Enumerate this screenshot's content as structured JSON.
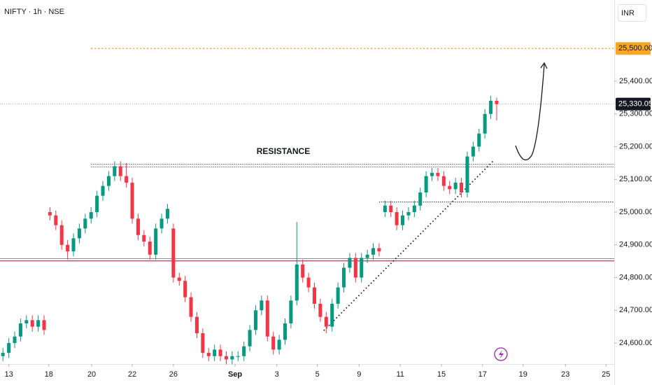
{
  "chart_data": {
    "type": "candlestick",
    "title": "NIFTY · 1h · NSE",
    "currency": "INR",
    "annotation": "RESISTANCE",
    "up_color": "#089981",
    "down_color": "#f23645",
    "open": [
      24560,
      24570,
      24600,
      24620,
      24660,
      24670,
      24650,
      24670,
      25000,
      24990,
      24960,
      24900,
      24880,
      24920,
      24950,
      24980,
      25000,
      25050,
      25080,
      25110,
      25140,
      25110,
      25090,
      24980,
      24930,
      24910,
      24870,
      24950,
      24980,
      24950,
      24800,
      24790,
      24740,
      24680,
      24630,
      24570,
      24560,
      24580,
      24560,
      24550,
      24560,
      24560,
      24590,
      24640,
      24700,
      24730,
      24620,
      24580,
      24610,
      24660,
      24730,
      24840,
      24800,
      24770,
      24720,
      24680,
      24650,
      24720,
      24770,
      24830,
      24860,
      24800,
      24860,
      24870,
      24890,
      25000,
      25020,
      25000,
      24960,
      24990,
      25000,
      25020,
      25060,
      25110,
      25120,
      25110,
      25080,
      25070,
      25090,
      25060,
      25170,
      25200,
      25240,
      25300,
      25340
    ],
    "high": [
      24585,
      24615,
      24635,
      24675,
      24685,
      24685,
      24685,
      24685,
      25015,
      25005,
      24975,
      24915,
      24935,
      24965,
      24995,
      25015,
      25065,
      25095,
      25125,
      25155,
      25155,
      25150,
      25105,
      24995,
      24945,
      24925,
      24965,
      24995,
      25025,
      24965,
      24815,
      24805,
      24755,
      24695,
      24645,
      24585,
      24595,
      24595,
      24575,
      24575,
      24575,
      24605,
      24655,
      24715,
      24745,
      24745,
      24635,
      24625,
      24675,
      24745,
      24970,
      24855,
      24815,
      24785,
      24735,
      24695,
      24735,
      24785,
      24845,
      24875,
      24875,
      24875,
      24885,
      24905,
      24905,
      25035,
      25035,
      25015,
      25005,
      25015,
      25035,
      25075,
      25125,
      25135,
      25135,
      25125,
      25095,
      25105,
      25105,
      25185,
      25215,
      25255,
      25315,
      25355,
      25350
    ],
    "low": [
      24545,
      24555,
      24585,
      24605,
      24645,
      24635,
      24635,
      24625,
      24975,
      24945,
      24885,
      24855,
      24865,
      24905,
      24935,
      24965,
      24985,
      25035,
      25065,
      25095,
      25095,
      25075,
      24965,
      24915,
      24895,
      24855,
      24855,
      24935,
      24965,
      24785,
      24775,
      24725,
      24665,
      24615,
      24555,
      24545,
      24545,
      24545,
      24535,
      24535,
      24545,
      24545,
      24575,
      24625,
      24685,
      24605,
      24565,
      24565,
      24595,
      24645,
      24715,
      24785,
      24755,
      24705,
      24665,
      24630,
      24635,
      24705,
      24755,
      24815,
      24785,
      24785,
      24845,
      24855,
      24865,
      24985,
      24985,
      24945,
      24945,
      24975,
      24985,
      25005,
      25045,
      25095,
      25095,
      25065,
      25055,
      25055,
      25045,
      25045,
      25155,
      25185,
      25225,
      25285,
      25280
    ],
    "close": [
      24570,
      24600,
      24620,
      24660,
      24670,
      24650,
      24670,
      24640,
      24990,
      24960,
      24900,
      24880,
      24920,
      24950,
      24980,
      25000,
      25050,
      25080,
      25110,
      25140,
      25110,
      25090,
      24980,
      24930,
      24910,
      24870,
      24950,
      24980,
      25010,
      24800,
      24790,
      24740,
      24680,
      24630,
      24570,
      24560,
      24580,
      24560,
      24550,
      24560,
      24560,
      24590,
      24640,
      24700,
      24730,
      24620,
      24580,
      24610,
      24660,
      24730,
      24840,
      24800,
      24770,
      24720,
      24680,
      24650,
      24720,
      24770,
      24830,
      24860,
      24800,
      24860,
      24870,
      24890,
      24880,
      25020,
      25000,
      24960,
      24990,
      25000,
      25020,
      25060,
      25110,
      25120,
      25110,
      25080,
      25070,
      25090,
      25060,
      25170,
      25200,
      25240,
      25300,
      25340,
      25330.05
    ],
    "xlim": [
      -0.5,
      104
    ],
    "xticks": [
      {
        "value": 1,
        "label": "13"
      },
      {
        "value": 7.8,
        "label": "18"
      },
      {
        "value": 15.1,
        "label": "20"
      },
      {
        "value": 22,
        "label": "22"
      },
      {
        "value": 29,
        "label": "26"
      },
      {
        "value": 39.5,
        "label": "Sep"
      },
      {
        "value": 46.6,
        "label": "3"
      },
      {
        "value": 53.5,
        "label": "5"
      },
      {
        "value": 60.6,
        "label": "9"
      },
      {
        "value": 67.6,
        "label": "11"
      },
      {
        "value": 74.6,
        "label": "15"
      },
      {
        "value": 81.6,
        "label": "17"
      },
      {
        "value": 88.5,
        "label": "19"
      },
      {
        "value": 95.7,
        "label": "23"
      },
      {
        "value": 102.6,
        "label": "25"
      }
    ],
    "ylim": [
      24536,
      25648
    ],
    "yticks": [
      {
        "value": 24600,
        "label": "24,600.00"
      },
      {
        "value": 24700,
        "label": "24,700.00"
      },
      {
        "value": 24800,
        "label": "24,800.00"
      },
      {
        "value": 24900,
        "label": "24,900.00"
      },
      {
        "value": 25000,
        "label": "25,000.00"
      },
      {
        "value": 25100,
        "label": "25,100.00"
      },
      {
        "value": 25200,
        "label": "25,200.00"
      },
      {
        "value": 25300,
        "label": "25,300.00"
      },
      {
        "value": 25400,
        "label": "25,400.00"
      }
    ],
    "last_price": {
      "value": 25330.05,
      "label": "25,330.05"
    },
    "target": {
      "value": 25500,
      "label": "25,500.00",
      "color": "#f5a623",
      "from": 15
    },
    "levels": [
      {
        "value": 25147,
        "color": "#4a4a6a",
        "from": 15
      },
      {
        "value": 25139,
        "color": "#8a4a8a",
        "from": 15
      },
      {
        "value": 25032,
        "color": "#333333",
        "from": 64
      },
      {
        "value": 24859,
        "color": "#8c8c99",
        "from": -0.5
      },
      {
        "value": 24852,
        "color": "#7a2030",
        "from": -0.5
      }
    ],
    "trendline": {
      "x": [
        54.6,
        83.4
      ],
      "y": [
        24638,
        25156
      ]
    }
  }
}
